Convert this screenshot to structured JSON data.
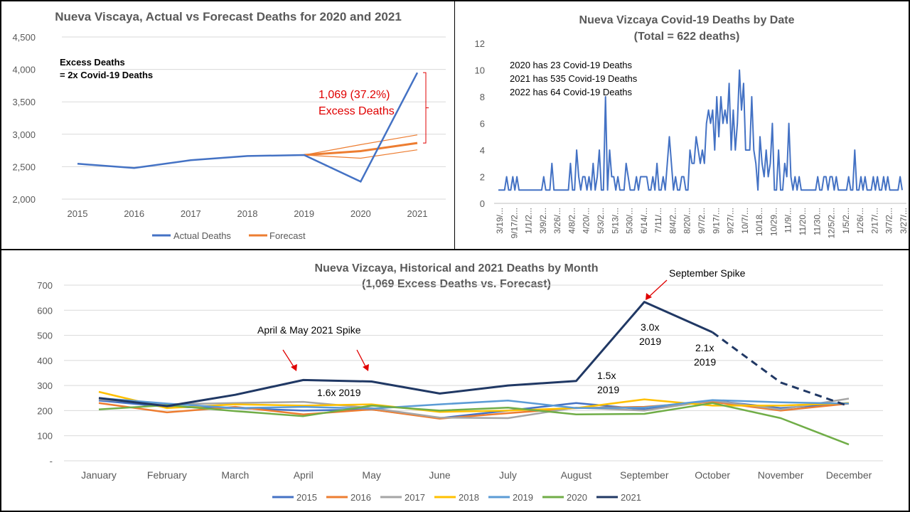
{
  "chart_data": [
    {
      "type": "line",
      "title": "Nueva Viscaya, Actual vs Forecast Deaths for 2020 and 2021",
      "categories": [
        "2015",
        "2016",
        "2017",
        "2018",
        "2019",
        "2020",
        "2021"
      ],
      "ylim": [
        2000,
        4500
      ],
      "yticks": [
        "2,000",
        "2,500",
        "3,000",
        "3,500",
        "4,000",
        "4,500"
      ],
      "series": [
        {
          "name": "Actual Deaths",
          "color": "#4472c4",
          "values": [
            2545,
            2480,
            2600,
            2665,
            2680,
            2270,
            3950
          ]
        },
        {
          "name": "Forecast",
          "color": "#ed7d31",
          "values": [
            null,
            null,
            null,
            null,
            2680,
            2740,
            2865
          ]
        }
      ],
      "forecast_bounds": {
        "upper": [
          null,
          null,
          null,
          null,
          2680,
          2840,
          2990
        ],
        "lower": [
          null,
          null,
          null,
          null,
          2680,
          2630,
          2760
        ]
      },
      "annotations": {
        "excess_line1": "Excess Deaths",
        "excess_line2": "= 2x Covid-19 Deaths",
        "value_label": "1,069 (37.2%)",
        "value_label2": "Excess Deaths"
      },
      "legend": "bottom"
    },
    {
      "type": "line",
      "title": "Nueva Vizcaya Covid-19 Deaths by Date",
      "subtitle": "(Total = 622 deaths)",
      "ylim": [
        0,
        12
      ],
      "yticks": [
        "0",
        "2",
        "4",
        "6",
        "8",
        "10",
        "12"
      ],
      "x_labels": [
        "3/19/...",
        "9/17/2...",
        "1/1/2...",
        "3/9/2...",
        "3/26/...",
        "4/8/2...",
        "4/20/...",
        "5/3/2...",
        "5/13/...",
        "5/30/...",
        "6/14/...",
        "7/11/...",
        "8/4/2...",
        "8/20/...",
        "9/7/2...",
        "9/17/...",
        "9/27/...",
        "10/7/...",
        "10/18...",
        "10/29...",
        "11/9/...",
        "11/20...",
        "11/30...",
        "12/5/2...",
        "1/5/2...",
        "1/26/...",
        "2/17/...",
        "3/7/2...",
        "3/27/..."
      ],
      "values": [
        1,
        1,
        1,
        1,
        2,
        1,
        1,
        2,
        1,
        2,
        1,
        1,
        1,
        1,
        1,
        1,
        1,
        1,
        1,
        1,
        1,
        1,
        2,
        1,
        1,
        1,
        3,
        1,
        1,
        1,
        1,
        1,
        1,
        1,
        1,
        3,
        1,
        1,
        4,
        2,
        1,
        2,
        2,
        1,
        2,
        1,
        3,
        1,
        2,
        4,
        1,
        1,
        8,
        1,
        4,
        2,
        2,
        1,
        2,
        1,
        1,
        1,
        3,
        2,
        1,
        1,
        1,
        2,
        1,
        2,
        2,
        2,
        2,
        1,
        1,
        2,
        1,
        3,
        1,
        1,
        2,
        1,
        3,
        5,
        3,
        1,
        2,
        1,
        1,
        2,
        2,
        1,
        1,
        4,
        3,
        3,
        5,
        4,
        3,
        4,
        3,
        6,
        7,
        6,
        7,
        4,
        8,
        5,
        8,
        6,
        7,
        6,
        9,
        4,
        7,
        4,
        6,
        10,
        7,
        9,
        4,
        4,
        4,
        8,
        4,
        3,
        1,
        5,
        3,
        2,
        4,
        2,
        3,
        6,
        1,
        1,
        4,
        1,
        1,
        3,
        2,
        6,
        2,
        1,
        2,
        1,
        2,
        1,
        1,
        1,
        1,
        1,
        1,
        1,
        1,
        2,
        1,
        1,
        2,
        2,
        1,
        2,
        2,
        1,
        2,
        1,
        1,
        1,
        1,
        1,
        2,
        1,
        1,
        4,
        1,
        1,
        2,
        1,
        2,
        1,
        1,
        1,
        2,
        1,
        2,
        1,
        1,
        2,
        1,
        2,
        1,
        1,
        1,
        1,
        1,
        2,
        1
      ],
      "annotations": [
        "2020 has 23 Covid-19 Deaths",
        "2021 has 535 Covid-19 Deaths",
        "2022 has 64 Covid-19 Deaths"
      ],
      "color": "#4472c4"
    },
    {
      "type": "line",
      "title": "Nueva Vizcaya, Historical and 2021 Deaths by Month",
      "subtitle": "(1,069 Excess Deaths vs. Forecast)",
      "categories": [
        "January",
        "February",
        "March",
        "April",
        "May",
        "June",
        "July",
        "August",
        "September",
        "October",
        "November",
        "December"
      ],
      "ylim": [
        0,
        700
      ],
      "yticks": [
        "-",
        "100",
        "200",
        "300",
        "400",
        "500",
        "600",
        "700"
      ],
      "series": [
        {
          "name": "2015",
          "color": "#4472c4",
          "values": [
            240,
            215,
            210,
            200,
            205,
            170,
            200,
            230,
            205,
            240,
            210,
            230
          ]
        },
        {
          "name": "2016",
          "color": "#ed7d31",
          "values": [
            230,
            193,
            215,
            185,
            205,
            168,
            190,
            210,
            215,
            235,
            200,
            228
          ]
        },
        {
          "name": "2017",
          "color": "#a5a5a5",
          "values": [
            245,
            225,
            230,
            235,
            210,
            172,
            170,
            212,
            200,
            240,
            205,
            248
          ]
        },
        {
          "name": "2018",
          "color": "#ffc000",
          "values": [
            275,
            210,
            225,
            220,
            225,
            195,
            200,
            210,
            245,
            220,
            220,
            230
          ]
        },
        {
          "name": "2019",
          "color": "#5b9bd5",
          "values": [
            250,
            228,
            210,
            215,
            208,
            225,
            240,
            210,
            212,
            242,
            233,
            228
          ]
        },
        {
          "name": "2020",
          "color": "#70ad47",
          "values": [
            205,
            222,
            198,
            178,
            220,
            200,
            212,
            185,
            187,
            230,
            170,
            65
          ]
        },
        {
          "name": "2021",
          "color": "#203864",
          "values": [
            250,
            218,
            263,
            322,
            316,
            268,
            300,
            318,
            633,
            512,
            312,
            218
          ]
        }
      ],
      "annotations": {
        "september_spike": "September Spike",
        "april_may_spike": "April & May 2021 Spike",
        "x16": "1.6x 2019",
        "x15a": "1.5x",
        "x15b": "2019",
        "x30a": "3.0x",
        "x30b": "2019",
        "x21a": "2.1x",
        "x21b": "2019"
      },
      "legend": "bottom"
    }
  ]
}
